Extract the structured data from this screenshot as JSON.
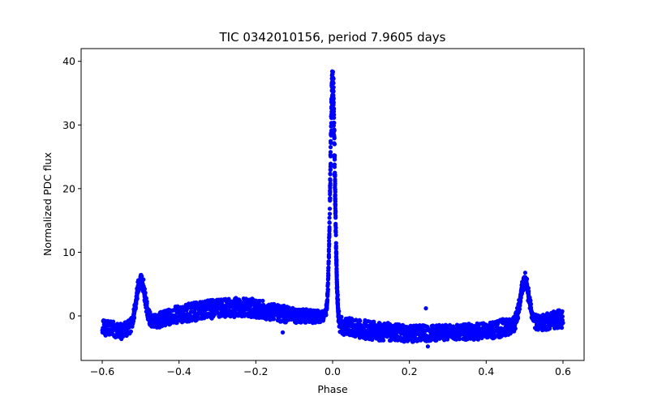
{
  "chart_data": {
    "type": "scatter",
    "title": "TIC 0342010156, period 7.9605 days",
    "xlabel": "Phase",
    "ylabel": "Normalized PDC flux",
    "xlim": [
      -0.655,
      0.655
    ],
    "ylim": [
      -7.0,
      42.0
    ],
    "xticks": [
      -0.6,
      -0.4,
      -0.2,
      0.0,
      0.2,
      0.4,
      0.6
    ],
    "xtick_labels": [
      "−0.6",
      "−0.4",
      "−0.2",
      "0.0",
      "0.2",
      "0.4",
      "0.6"
    ],
    "yticks": [
      0,
      10,
      20,
      30,
      40
    ],
    "ytick_labels": [
      "0",
      "10",
      "20",
      "30",
      "40"
    ],
    "grid": false,
    "marker_color": "#0000ff",
    "series": [
      {
        "name": "PDC flux",
        "x_range": [
          -0.6,
          0.6
        ],
        "flare_peaks": [
          {
            "phase": -0.5,
            "peak": 7.4,
            "width": 0.011
          },
          {
            "phase": 0.0,
            "peak": 40.0,
            "width": 0.006
          },
          {
            "phase": 0.5,
            "peak": 7.4,
            "width": 0.011
          }
        ],
        "baseline_profile": {
          "phase": [
            -0.6,
            -0.55,
            -0.5,
            -0.45,
            -0.4,
            -0.3,
            -0.22,
            -0.12,
            -0.05,
            -0.01,
            0.02,
            0.1,
            0.2,
            0.3,
            0.4,
            0.45,
            0.5,
            0.55,
            0.6
          ],
          "median": [
            -1.8,
            -2.4,
            -1.2,
            -0.6,
            0.3,
            1.2,
            1.4,
            0.2,
            -0.1,
            0.0,
            -1.5,
            -2.3,
            -2.8,
            -2.6,
            -2.4,
            -1.8,
            -1.2,
            -1.0,
            -0.4
          ],
          "half_width": [
            1.2,
            1.3,
            1.0,
            1.2,
            1.4,
            1.5,
            1.5,
            1.3,
            1.0,
            0.8,
            1.4,
            1.5,
            1.3,
            1.2,
            1.3,
            1.4,
            1.0,
            1.3,
            1.5
          ]
        },
        "outliers": [
          {
            "x": 0.243,
            "y": 1.2
          },
          {
            "x": 0.248,
            "y": -4.8
          },
          {
            "x": -0.13,
            "y": -2.6
          }
        ]
      }
    ]
  }
}
